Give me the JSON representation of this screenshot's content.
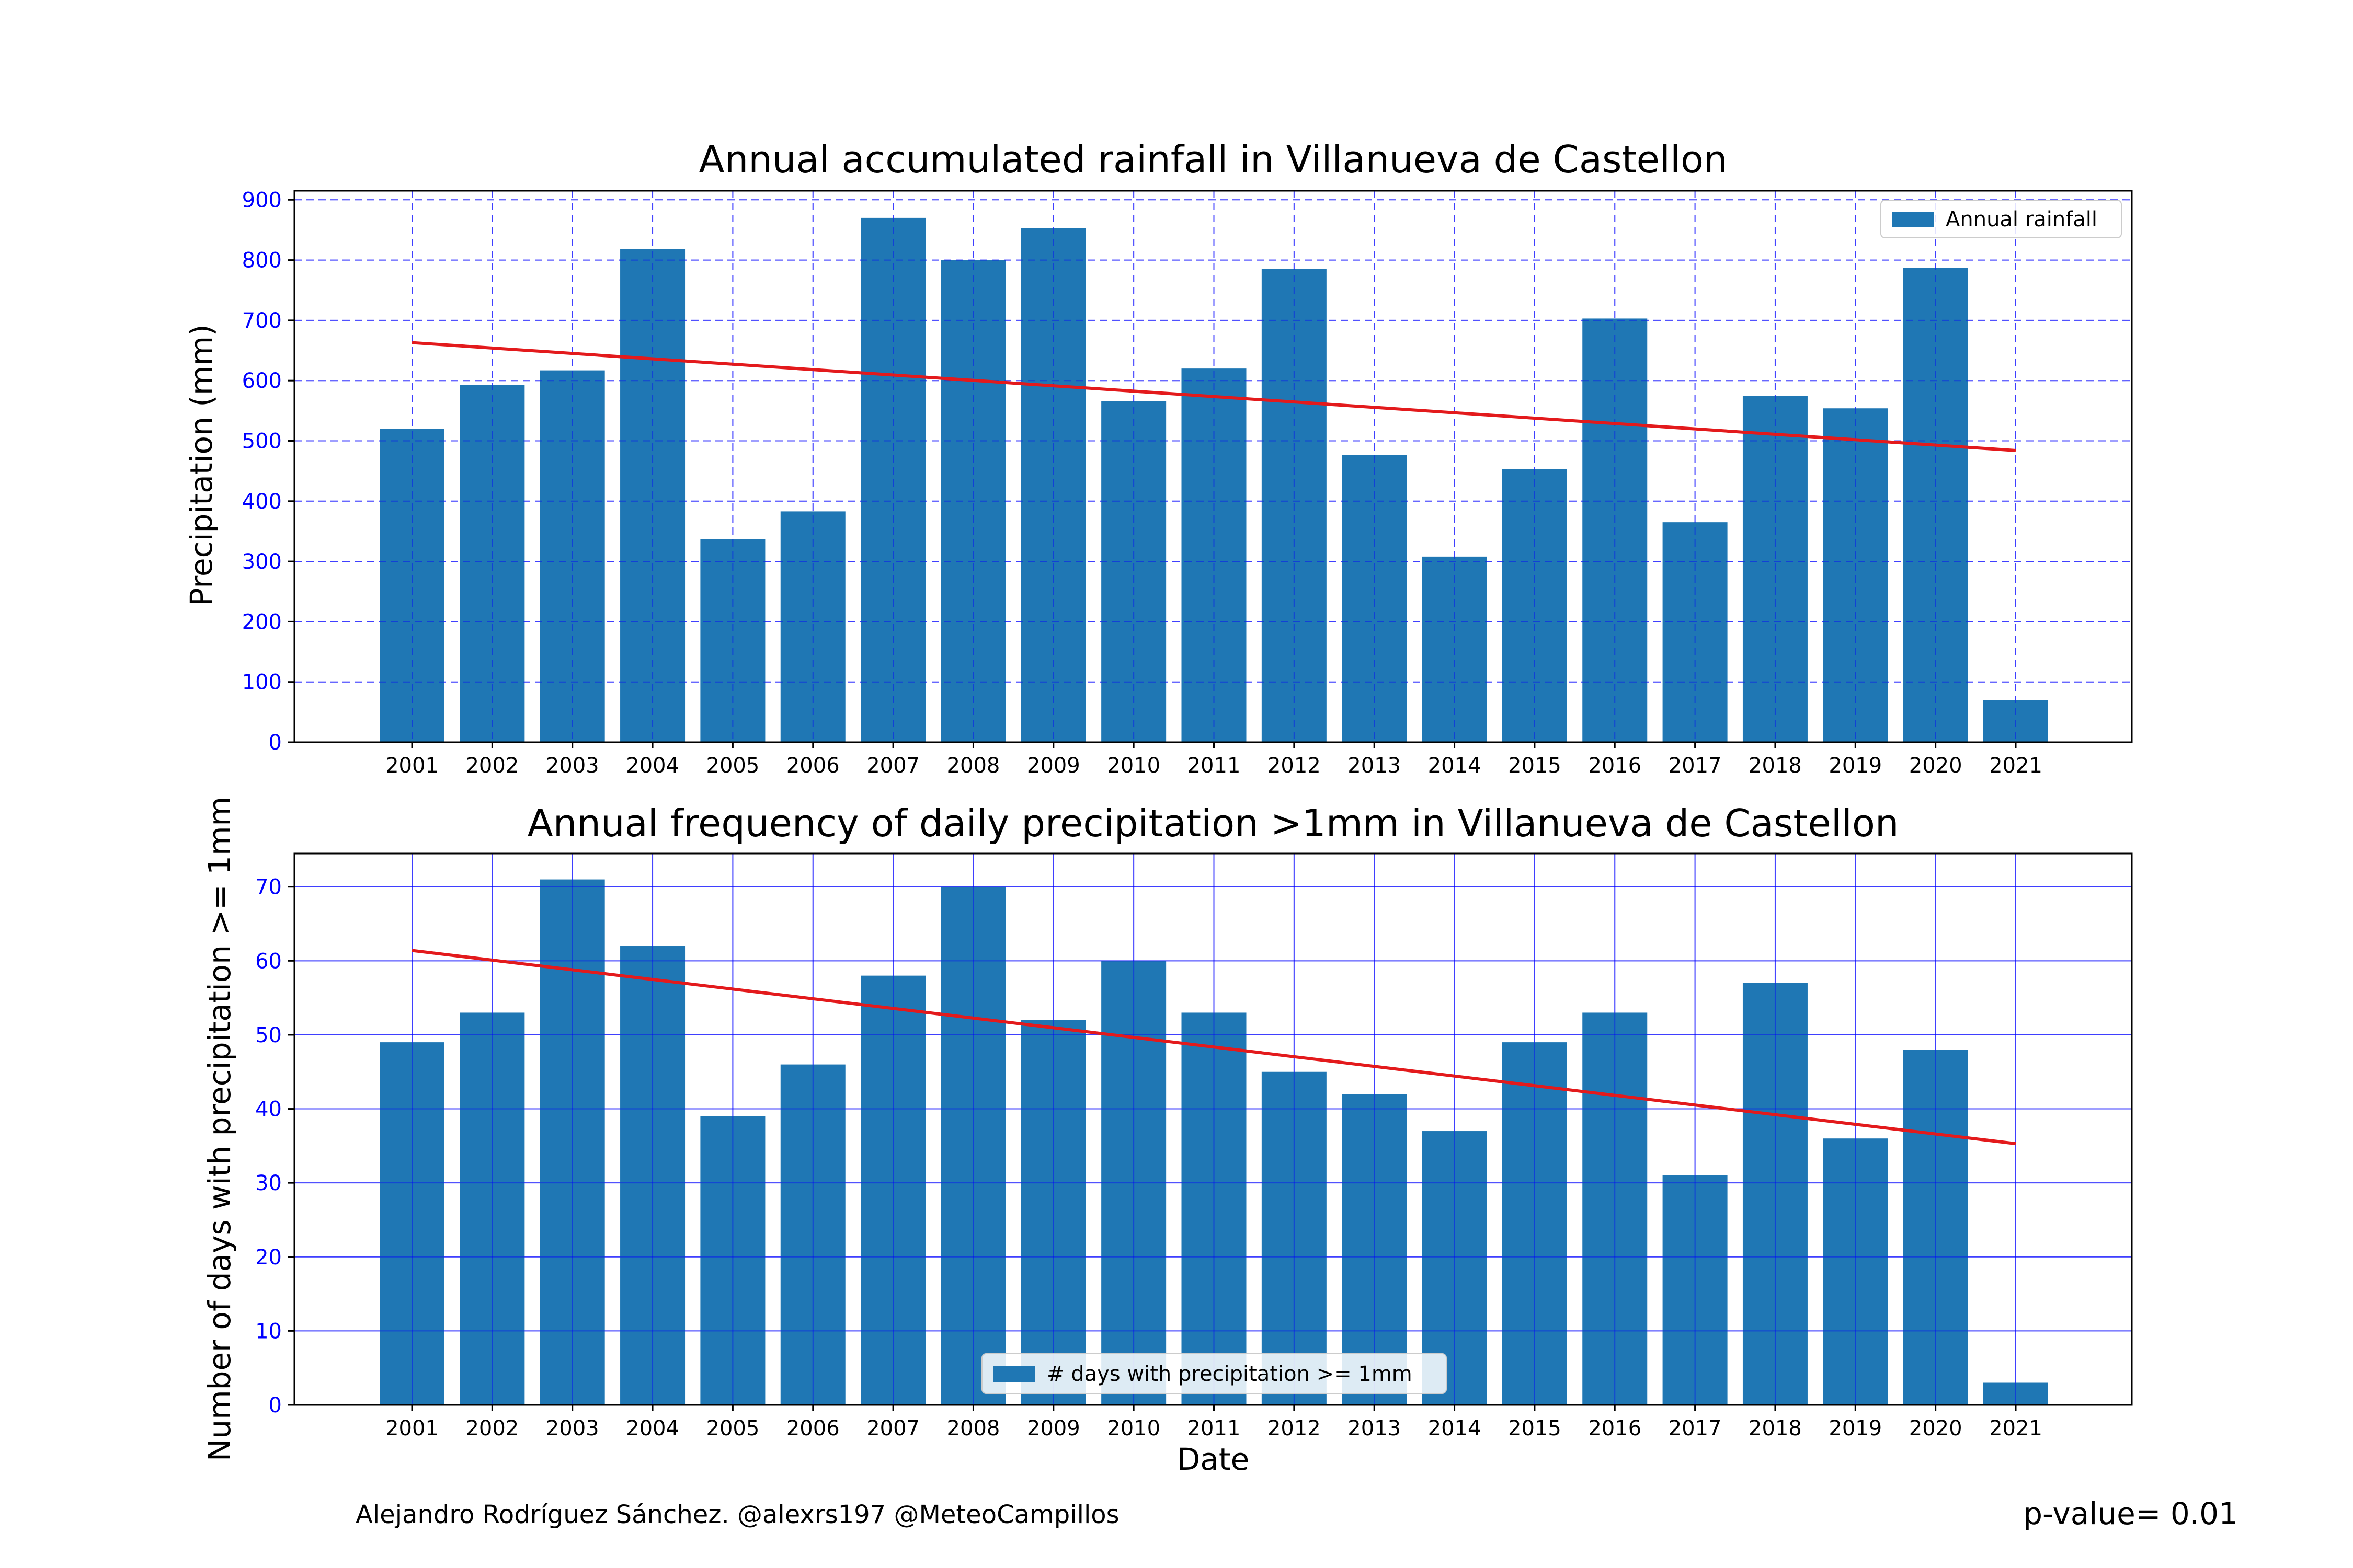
{
  "chart_data": [
    {
      "type": "bar",
      "title": "Annual accumulated rainfall in Villanueva de Castellon",
      "xlabel": "",
      "ylabel": "Precipitation (mm)",
      "categories": [
        "2001",
        "2002",
        "2003",
        "2004",
        "2005",
        "2006",
        "2007",
        "2008",
        "2009",
        "2010",
        "2011",
        "2012",
        "2013",
        "2014",
        "2015",
        "2016",
        "2017",
        "2018",
        "2019",
        "2020",
        "2021"
      ],
      "series": [
        {
          "name": "Annual rainfall",
          "values": [
            520,
            593,
            617,
            818,
            337,
            383,
            870,
            800,
            853,
            566,
            620,
            785,
            477,
            308,
            453,
            703,
            365,
            575,
            554,
            787,
            70
          ]
        }
      ],
      "trend": {
        "start": 663,
        "end": 484
      },
      "ylim": [
        0,
        915
      ],
      "yticks": [
        0,
        100,
        200,
        300,
        400,
        500,
        600,
        700,
        800,
        900
      ],
      "grid": "dashed",
      "legend_position": "top-right",
      "colors": {
        "bar": "#1f77b4",
        "trend": "#e31a1c",
        "grid": "#0000ff",
        "ytick": "#0000ff"
      }
    },
    {
      "type": "bar",
      "title": "Annual frequency of daily precipitation >1mm in Villanueva de Castellon",
      "xlabel": "Date",
      "ylabel": "Number of days with precipitation >= 1mm",
      "categories": [
        "2001",
        "2002",
        "2003",
        "2004",
        "2005",
        "2006",
        "2007",
        "2008",
        "2009",
        "2010",
        "2011",
        "2012",
        "2013",
        "2014",
        "2015",
        "2016",
        "2017",
        "2018",
        "2019",
        "2020",
        "2021"
      ],
      "series": [
        {
          "name": "# days with precipitation >= 1mm",
          "values": [
            49,
            53,
            71,
            62,
            39,
            46,
            58,
            70,
            52,
            60,
            53,
            45,
            42,
            37,
            49,
            53,
            31,
            57,
            36,
            48,
            3
          ]
        }
      ],
      "trend": {
        "start": 61.4,
        "end": 35.3
      },
      "ylim": [
        0,
        74.5
      ],
      "yticks": [
        0,
        10,
        20,
        30,
        40,
        50,
        60,
        70
      ],
      "grid": "solid",
      "legend_position": "lower-center",
      "colors": {
        "bar": "#1f77b4",
        "trend": "#e31a1c",
        "grid": "#0000ff",
        "ytick": "#0000ff"
      }
    }
  ],
  "footer": {
    "credit": "Alejandro Rodríguez Sánchez. @alexrs197 @MeteoCampillos",
    "pvalue": "p-value= 0.01"
  }
}
